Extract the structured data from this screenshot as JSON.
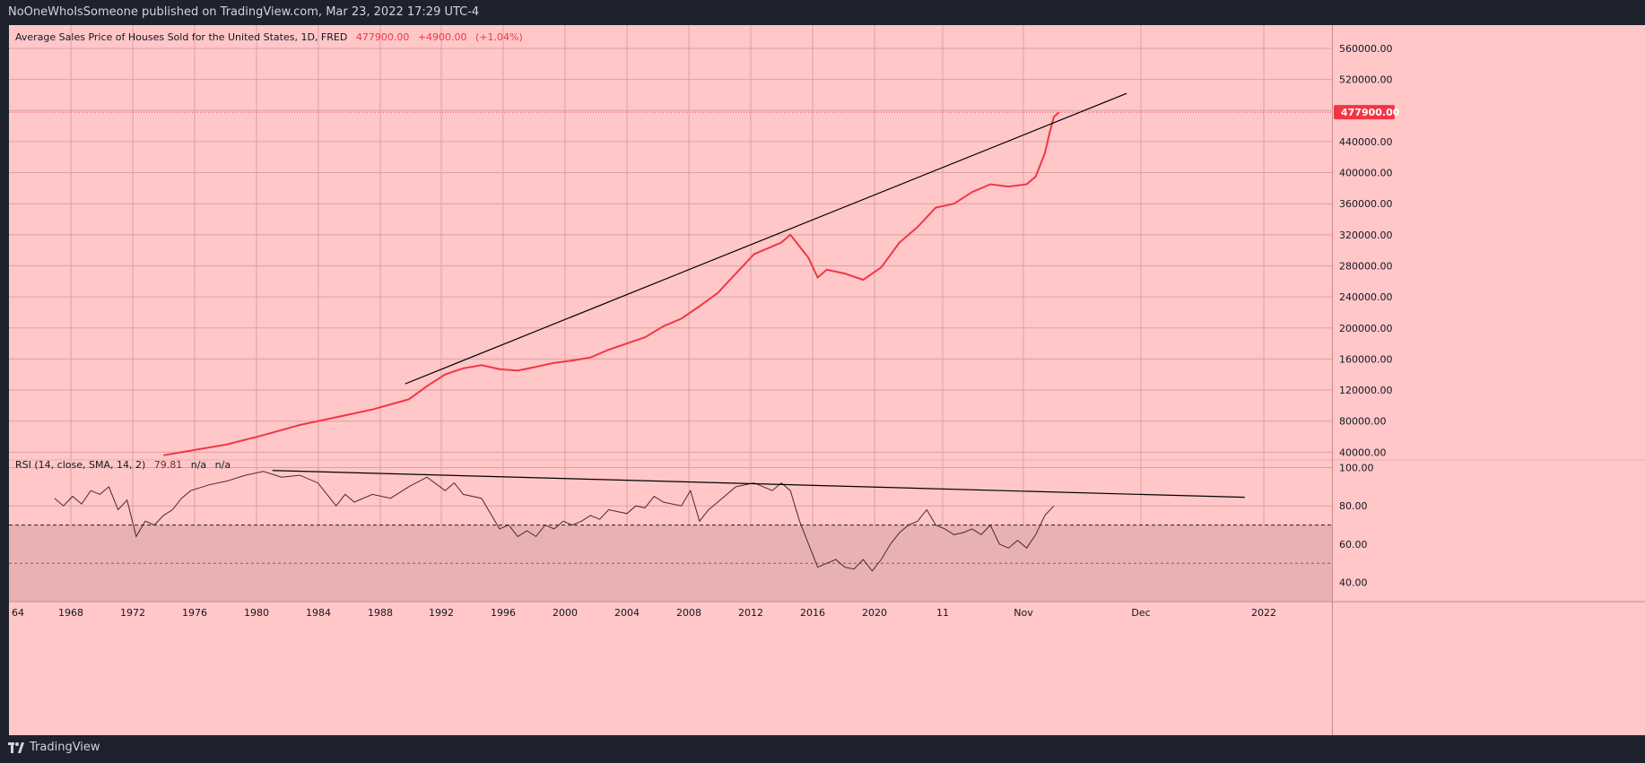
{
  "header": {
    "published_by": "NoOneWhoIsSomeone published on TradingView.com, Mar 23, 2022 17:29 UTC-4"
  },
  "footer": {
    "brand": "TradingView"
  },
  "colors": {
    "background": "#ffc7c8",
    "line": "#f23645",
    "trend": "#000000",
    "rsi_line": "#4a2a2a",
    "rsi_band": "#e8b2b3",
    "price_badge": "#f23645",
    "frame": "#1e222d"
  },
  "chart_data": [
    {
      "type": "line",
      "title": "Average Sales Price of Houses Sold for the United States, 1D, FRED",
      "last_value": "477900.00",
      "change": "+4900.00",
      "change_pct": "(+1.04%)",
      "price_label": "477900.00",
      "x_tick_labels": [
        "64",
        "1968",
        "1972",
        "1976",
        "1980",
        "1984",
        "1988",
        "1992",
        "1996",
        "2000",
        "2004",
        "2008",
        "2012",
        "2016",
        "2020",
        "11",
        "Nov",
        "Dec",
        "2022"
      ],
      "y_ticks": [
        40000,
        80000,
        120000,
        160000,
        200000,
        240000,
        280000,
        320000,
        360000,
        400000,
        440000,
        480000,
        520000,
        560000
      ],
      "y_tick_labels": [
        "40000.00",
        "80000.00",
        "120000.00",
        "160000.00",
        "200000.00",
        "240000.00",
        "280000.00",
        "320000.00",
        "360000.00",
        "400000.00",
        "440000.00",
        "480000.00",
        "520000.00",
        "560000.00"
      ],
      "ylim": [
        30000,
        590000
      ],
      "series": [
        {
          "x": [
            1972.5,
            1974,
            1976,
            1978,
            1980,
            1982,
            1984,
            1986,
            1987,
            1988,
            1989,
            1990,
            1991,
            1992,
            1993,
            1994,
            1995,
            1996,
            1997,
            1998,
            1999,
            2000,
            2001,
            2002,
            2003,
            2004,
            2005,
            2006,
            2006.5,
            2007,
            2008,
            2008.5,
            2009,
            2010,
            2011,
            2012,
            2013,
            2014,
            2015,
            2016,
            2017,
            2018,
            2019,
            2020,
            2020.5,
            2021,
            2021.3,
            2021.5,
            2021.8
          ],
          "values": [
            36000,
            42000,
            50000,
            62000,
            75000,
            85000,
            95000,
            108000,
            125000,
            140000,
            148000,
            152000,
            147000,
            145000,
            150000,
            155000,
            158000,
            162000,
            172000,
            180000,
            188000,
            202000,
            212000,
            228000,
            245000,
            270000,
            295000,
            305000,
            310000,
            320000,
            290000,
            265000,
            275000,
            270000,
            262000,
            278000,
            310000,
            330000,
            355000,
            360000,
            375000,
            385000,
            382000,
            385000,
            395000,
            425000,
            455000,
            472000,
            477900
          ]
        }
      ],
      "trendline": {
        "x": [
          1985.8,
          2025.5
        ],
        "y": [
          128000,
          502000
        ]
      }
    },
    {
      "type": "line",
      "title": "RSI (14, close, SMA, 14, 2)",
      "value_label": "79.81",
      "na_labels": [
        "n/a",
        "n/a"
      ],
      "y_ticks": [
        40,
        60,
        80,
        100
      ],
      "y_tick_labels": [
        "40.00",
        "60.00",
        "80.00",
        "100.00"
      ],
      "ylim": [
        30,
        104
      ],
      "levels": [
        30,
        50,
        70
      ],
      "series": [
        {
          "x": [
            1966.5,
            1967,
            1967.5,
            1968,
            1968.5,
            1969,
            1969.5,
            1970,
            1970.5,
            1971,
            1971.5,
            1972,
            1972.5,
            1973,
            1973.5,
            1974,
            1975,
            1976,
            1977,
            1978,
            1979,
            1980,
            1981,
            1982,
            1982.5,
            1983,
            1984,
            1985,
            1986,
            1987,
            1988,
            1988.5,
            1989,
            1990,
            1991,
            1991.5,
            1992,
            1992.5,
            1993,
            1993.5,
            1994,
            1994.5,
            1995,
            1995.5,
            1996,
            1996.5,
            1997,
            1998,
            1998.5,
            1999,
            1999.5,
            2000,
            2001,
            2001.5,
            2002,
            2002.5,
            2003,
            2004,
            2005,
            2006,
            2006.5,
            2007,
            2007.5,
            2008,
            2008.5,
            2009,
            2009.5,
            2010,
            2010.5,
            2011,
            2011.5,
            2012,
            2012.5,
            2013,
            2013.5,
            2014,
            2014.5,
            2015,
            2015.5,
            2016,
            2016.5,
            2017,
            2017.5,
            2018,
            2018.5,
            2019,
            2019.5,
            2020,
            2020.5,
            2021,
            2021.5
          ],
          "values": [
            84,
            80,
            85,
            81,
            88,
            86,
            90,
            78,
            83,
            64,
            72,
            70,
            75,
            78,
            84,
            88,
            91,
            93,
            96,
            98,
            95,
            96,
            92,
            80,
            86,
            82,
            86,
            84,
            90,
            95,
            88,
            92,
            86,
            84,
            68,
            70,
            64,
            67,
            64,
            70,
            68,
            72,
            70,
            72,
            75,
            73,
            78,
            76,
            80,
            79,
            85,
            82,
            80,
            88,
            72,
            78,
            82,
            90,
            92,
            88,
            92,
            88,
            72,
            60,
            48,
            50,
            52,
            48,
            47,
            52,
            46,
            52,
            60,
            66,
            70,
            72,
            78,
            70,
            68,
            65,
            66,
            68,
            65,
            70,
            60,
            58,
            62,
            58,
            65,
            75,
            80
          ]
        }
      ],
      "trendline": {
        "x": [
          1978.5,
          2032
        ],
        "y": [
          98.5,
          84.5
        ]
      }
    }
  ]
}
